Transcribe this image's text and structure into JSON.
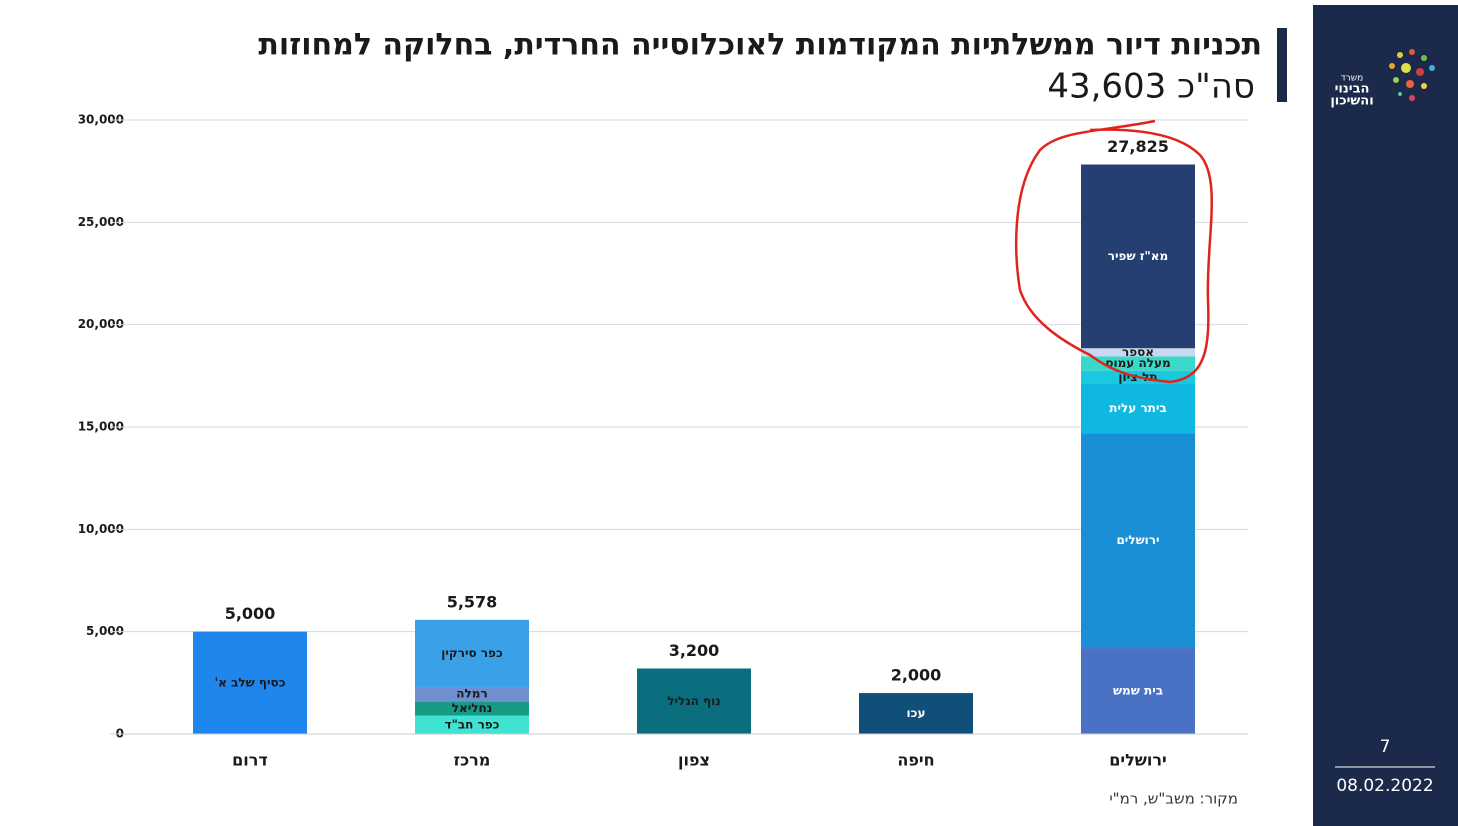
{
  "slide": {
    "page_number": "7",
    "date": "08.02.2022",
    "source": "מקור: משב\"ש, רמ\"י",
    "logo_lines": [
      "משרד",
      "הבינוי",
      "והשיכון"
    ]
  },
  "chart_data": {
    "type": "stacked_bar",
    "title": "תכניות דיור ממשלתיות המקודמות לאוכלוסייה החרדית, בחלוקה למחוזות",
    "subtitle": "סה\"כ 43,603",
    "categories": [
      "דרום",
      "מרכז",
      "צפון",
      "חיפה",
      "ירושלים"
    ],
    "ylim": [
      0,
      30000
    ],
    "yticks": [
      0,
      {
        "value": 5000,
        "label": "5,000"
      },
      {
        "value": 10000,
        "label": "10,000"
      },
      {
        "value": 15000,
        "label": "15,000"
      },
      {
        "value": 20000,
        "label": "20,000"
      },
      {
        "value": 25000,
        "label": "25,000"
      },
      {
        "value": 30000,
        "label": "30,000"
      }
    ],
    "grid": true,
    "totals": {
      "values": [
        5000,
        5578,
        3200,
        2000,
        27825
      ],
      "value_labels": [
        "5,000",
        "5,578",
        "3,200",
        "2,000",
        "27,825"
      ]
    },
    "series": [
      {
        "name": "כסיף שלב א'",
        "color": "#1f86ee",
        "label_color": "#1a1a1a",
        "values": [
          5000,
          null,
          null,
          null,
          null
        ]
      },
      {
        "name": "כפר חב\"ד",
        "color": "#3fe3d2",
        "label_color": "#1a1a1a",
        "values": [
          null,
          900,
          null,
          null,
          null
        ]
      },
      {
        "name": "נחליאל",
        "color": "#179a86",
        "label_color": "#1a1a1a",
        "values": [
          null,
          700,
          null,
          null,
          null
        ]
      },
      {
        "name": "רמלה",
        "color": "#6f8fd0",
        "label_color": "#1a1a1a",
        "values": [
          null,
          700,
          null,
          null,
          null
        ]
      },
      {
        "name": "כפר סירקין",
        "color": "#3aa0e8",
        "label_color": "#1a1a1a",
        "values": [
          null,
          3278,
          null,
          null,
          null
        ]
      },
      {
        "name": "נוף הגליל",
        "color": "#0a6e7e",
        "label_color": "#1a1a1a",
        "values": [
          null,
          null,
          3200,
          null,
          null
        ]
      },
      {
        "name": "עכו",
        "color": "#0f4f7a",
        "label_color": "#ffffff",
        "values": [
          null,
          null,
          null,
          2000,
          null
        ]
      },
      {
        "name": "בית שמש",
        "color": "#4a72c4",
        "label_color": "#ffffff",
        "values": [
          null,
          null,
          null,
          null,
          4200
        ]
      },
      {
        "name": "ירושלים",
        "color": "#1a8fd6",
        "label_color": "#ffffff",
        "values": [
          null,
          null,
          null,
          null,
          10500
        ]
      },
      {
        "name": "ביתר עלית",
        "color": "#0eb8e0",
        "label_color": "#ffffff",
        "values": [
          null,
          null,
          null,
          null,
          2400
        ]
      },
      {
        "name": "תל ציון",
        "color": "#19c9e0",
        "label_color": "#1a1a1a",
        "values": [
          null,
          null,
          null,
          null,
          650
        ]
      },
      {
        "name": "מעלה עמוס",
        "color": "#3ad8c8",
        "label_color": "#1a1a1a",
        "values": [
          null,
          null,
          null,
          null,
          700
        ]
      },
      {
        "name": "אספר",
        "color": "#c8d8f0",
        "label_color": "#1a1a1a",
        "values": [
          null,
          null,
          null,
          null,
          400
        ]
      },
      {
        "name": "מא\"ז שפיר",
        "color": "#263f73",
        "label_color": "#ffffff",
        "values": [
          null,
          null,
          null,
          null,
          8975
        ]
      }
    ]
  }
}
